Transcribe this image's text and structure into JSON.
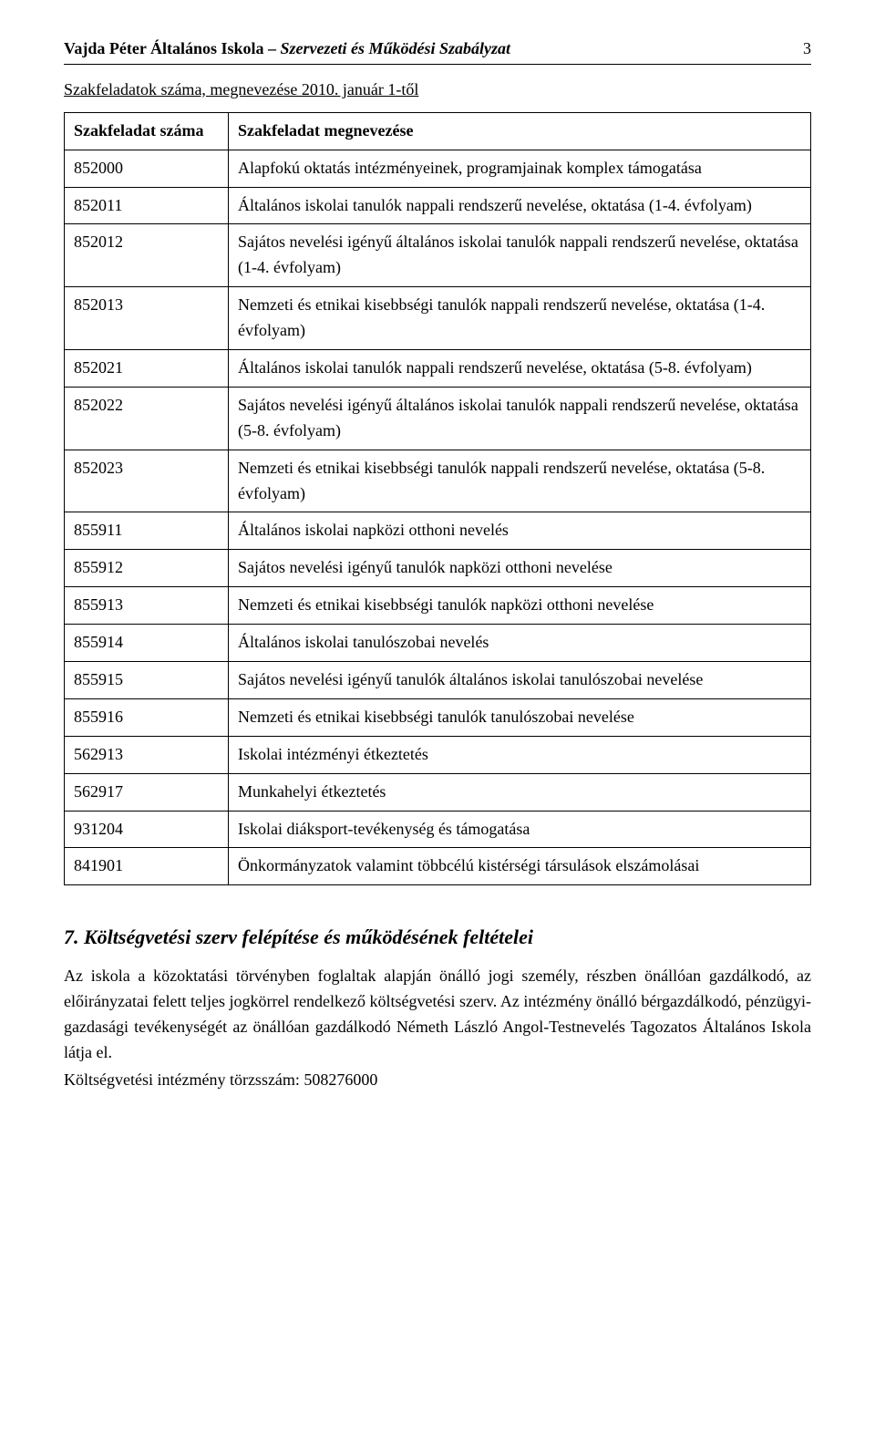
{
  "header": {
    "school": "Vajda Péter Általános Iskola –",
    "doc_title": "Szervezeti és Működési Szabályzat",
    "page_number": "3"
  },
  "subhead": "Szakfeladatok száma, megnevezése 2010. január 1-től",
  "table": {
    "col1": "Szakfeladat száma",
    "col2": "Szakfeladat megnevezése",
    "rows": [
      {
        "code": "852000",
        "desc": "Alapfokú oktatás intézményeinek, programjainak komplex támogatása"
      },
      {
        "code": "852011",
        "desc": "Általános iskolai tanulók nappali rendszerű nevelése, oktatása (1-4. évfolyam)"
      },
      {
        "code": "852012",
        "desc": "Sajátos nevelési igényű általános iskolai tanulók nappali rendszerű nevelése, oktatása (1-4. évfolyam)"
      },
      {
        "code": "852013",
        "desc": "Nemzeti és etnikai kisebbségi tanulók nappali rendszerű nevelése, oktatása (1-4. évfolyam)"
      },
      {
        "code": "852021",
        "desc": "Általános iskolai tanulók nappali rendszerű nevelése, oktatása (5-8. évfolyam)"
      },
      {
        "code": "852022",
        "desc": "Sajátos nevelési igényű általános iskolai tanulók nappali rendszerű nevelése, oktatása (5-8. évfolyam)"
      },
      {
        "code": "852023",
        "desc": "Nemzeti és etnikai kisebbségi tanulók nappali rendszerű nevelése, oktatása (5-8. évfolyam)"
      },
      {
        "code": "855911",
        "desc": "Általános iskolai napközi otthoni nevelés"
      },
      {
        "code": "855912",
        "desc": "Sajátos nevelési igényű tanulók napközi otthoni nevelése"
      },
      {
        "code": "855913",
        "desc": "Nemzeti és etnikai kisebbségi tanulók napközi otthoni nevelése"
      },
      {
        "code": "855914",
        "desc": "Általános iskolai tanulószobai nevelés"
      },
      {
        "code": "855915",
        "desc": "Sajátos nevelési igényű tanulók általános iskolai tanulószobai nevelése"
      },
      {
        "code": "855916",
        "desc": "Nemzeti és etnikai kisebbségi tanulók tanulószobai nevelése"
      },
      {
        "code": "562913",
        "desc": "Iskolai intézményi étkeztetés"
      },
      {
        "code": "562917",
        "desc": "Munkahelyi étkeztetés"
      },
      {
        "code": "931204",
        "desc": "Iskolai diáksport-tevékenység és támogatása"
      },
      {
        "code": "841901",
        "desc": "Önkormányzatok valamint többcélú kistérségi társulások elszámolásai"
      }
    ]
  },
  "section": {
    "title": "7. Költségvetési szerv felépítése és működésének feltételei",
    "para": "Az iskola a közoktatási törvényben foglaltak alapján önálló jogi személy, részben önállóan gazdálkodó, az előirányzatai felett teljes jogkörrel rendelkező költségvetési szerv. Az intézmény önálló bérgazdálkodó, pénzügyi-gazdasági tevékenységét az önállóan gazdálkodó Németh László Angol-Testnevelés Tagozatos Általános Iskola látja el.",
    "line2": "Költségvetési intézmény törzsszám: 508276000"
  }
}
